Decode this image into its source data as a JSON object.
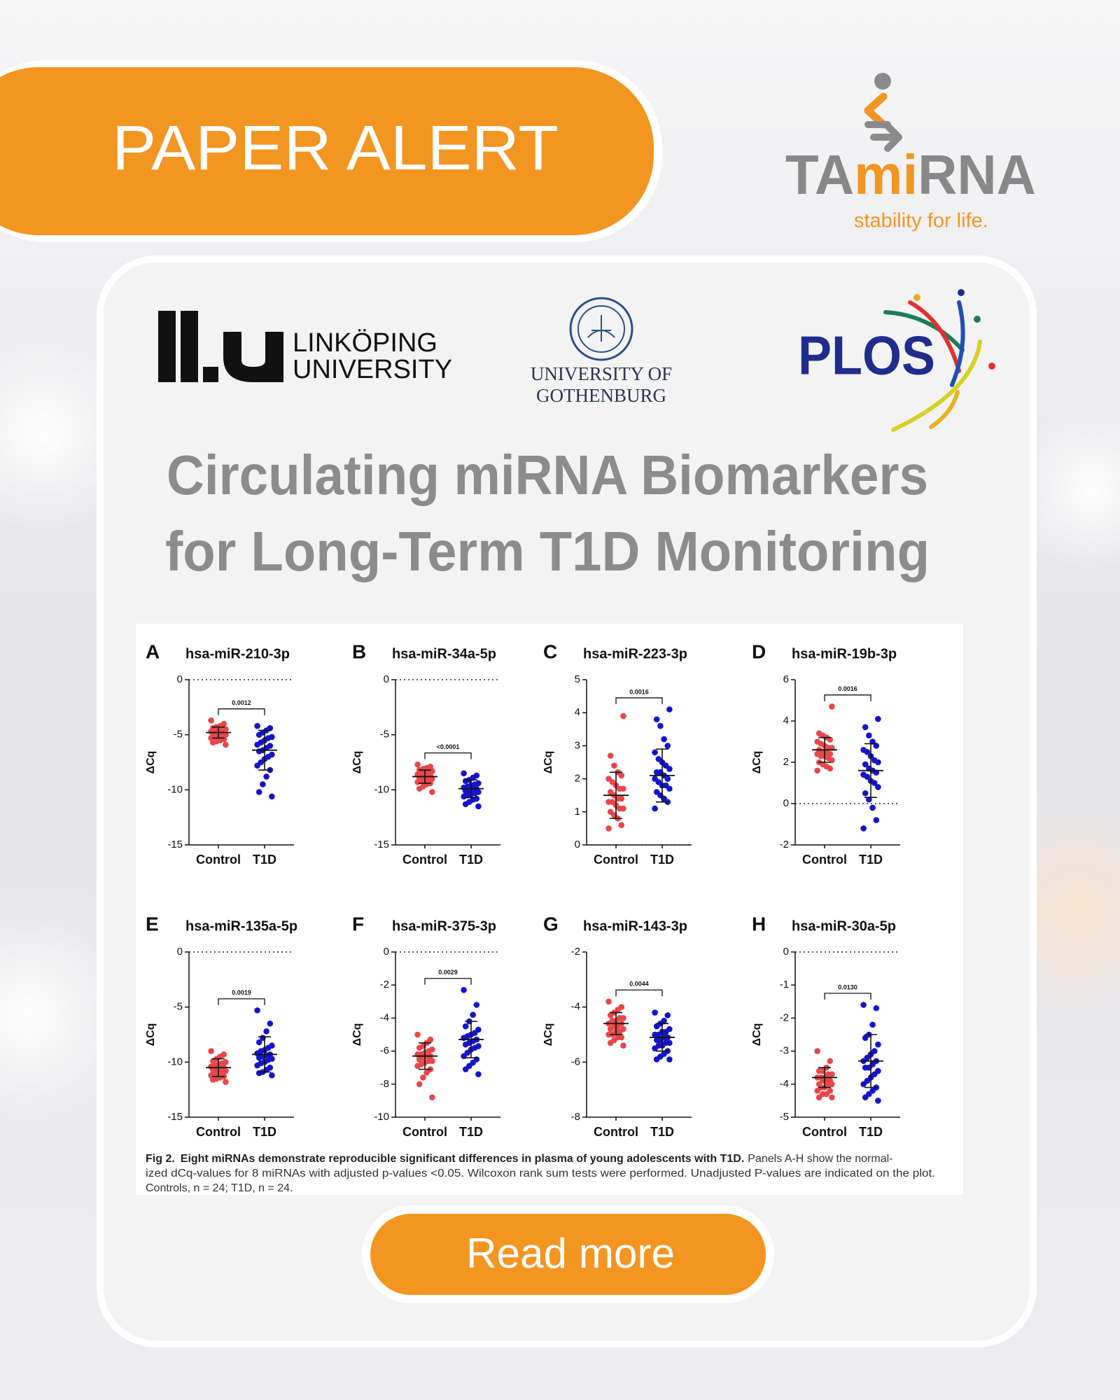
{
  "header": {
    "badge": "PAPER ALERT",
    "brand": {
      "part_1": "TA",
      "part_2": "mi",
      "part_3": "RNA",
      "tagline": "stability for life."
    }
  },
  "logos": {
    "liu": [
      "LINKÖPING",
      "UNIVERSITY"
    ],
    "gothenburg": [
      "UNIVERSITY OF",
      "GOTHENBURG"
    ],
    "plos": "PLOS"
  },
  "title": [
    "Circulating miRNA Biomarkers",
    "for Long-Term T1D Monitoring"
  ],
  "chart_data": [
    {
      "type": "scatter",
      "panel": "A",
      "title": "hsa-miR-210-3p",
      "y_label": "ΔCq",
      "categories": [
        "Control",
        "T1D"
      ],
      "series": [
        {
          "color": "#e8474a",
          "values": [
            -3.7,
            -4.0,
            -4.2,
            -4.3,
            -4.4,
            -4.5,
            -4.5,
            -4.6,
            -4.7,
            -4.7,
            -4.8,
            -4.8,
            -4.9,
            -5.0,
            -5.0,
            -5.1,
            -5.2,
            -5.2,
            -5.3,
            -5.4,
            -5.5,
            -5.6,
            -5.7,
            -5.9
          ],
          "mean": -4.8,
          "sd": 0.5
        },
        {
          "color": "#1414cc",
          "values": [
            -4.2,
            -4.4,
            -4.6,
            -4.8,
            -5.0,
            -5.2,
            -5.3,
            -5.5,
            -5.7,
            -5.9,
            -6.0,
            -6.2,
            -6.4,
            -6.5,
            -6.8,
            -7.0,
            -7.2,
            -7.5,
            -7.8,
            -8.2,
            -8.8,
            -9.5,
            -10.2,
            -10.6
          ],
          "mean": -6.4,
          "sd": 1.8
        }
      ],
      "ylim": [
        -15,
        0
      ],
      "yticks": [
        -15,
        -10,
        -5,
        0
      ],
      "reference_line": 0,
      "annotation": "0.0012"
    },
    {
      "type": "scatter",
      "panel": "B",
      "title": "hsa-miR-34a-5p",
      "y_label": "ΔCq",
      "categories": [
        "Control",
        "T1D"
      ],
      "series": [
        {
          "color": "#e8474a",
          "values": [
            -7.7,
            -7.9,
            -8.0,
            -8.1,
            -8.2,
            -8.3,
            -8.4,
            -8.5,
            -8.5,
            -8.6,
            -8.7,
            -8.7,
            -8.8,
            -8.9,
            -9.0,
            -9.0,
            -9.1,
            -9.2,
            -9.3,
            -9.4,
            -9.5,
            -9.7,
            -9.9,
            -10.2
          ],
          "mean": -8.8,
          "sd": 0.6
        },
        {
          "color": "#1414cc",
          "values": [
            -8.5,
            -8.7,
            -8.9,
            -9.1,
            -9.2,
            -9.4,
            -9.5,
            -9.6,
            -9.7,
            -9.8,
            -9.9,
            -9.9,
            -10.0,
            -10.1,
            -10.2,
            -10.3,
            -10.4,
            -10.5,
            -10.6,
            -10.8,
            -10.9,
            -11.1,
            -11.3,
            -11.5
          ],
          "mean": -9.9,
          "sd": 0.8
        }
      ],
      "ylim": [
        -15,
        0
      ],
      "yticks": [
        -15,
        -10,
        -5,
        0
      ],
      "reference_line": 0,
      "annotation": "<0.0001"
    },
    {
      "type": "scatter",
      "panel": "C",
      "title": "hsa-miR-223-3p",
      "y_label": "ΔCq",
      "categories": [
        "Control",
        "T1D"
      ],
      "series": [
        {
          "color": "#e8474a",
          "values": [
            0.5,
            0.6,
            0.8,
            0.9,
            1.0,
            1.1,
            1.1,
            1.2,
            1.3,
            1.3,
            1.4,
            1.4,
            1.5,
            1.6,
            1.7,
            1.7,
            1.8,
            1.9,
            2.0,
            2.1,
            2.2,
            2.4,
            2.7,
            3.9
          ],
          "mean": 1.5,
          "sd": 0.7
        },
        {
          "color": "#1414cc",
          "values": [
            1.1,
            1.3,
            1.4,
            1.5,
            1.6,
            1.7,
            1.8,
            1.8,
            1.9,
            2.0,
            2.0,
            2.1,
            2.2,
            2.2,
            2.3,
            2.4,
            2.5,
            2.6,
            2.8,
            3.0,
            3.2,
            3.6,
            3.8,
            4.1
          ],
          "mean": 2.1,
          "sd": 0.8
        }
      ],
      "ylim": [
        0,
        5
      ],
      "yticks": [
        0,
        1,
        2,
        3,
        4,
        5
      ],
      "reference_line": 0,
      "annotation": "0.0016"
    },
    {
      "type": "scatter",
      "panel": "D",
      "title": "hsa-miR-19b-3p",
      "y_label": "ΔCq",
      "categories": [
        "Control",
        "T1D"
      ],
      "series": [
        {
          "color": "#e8474a",
          "values": [
            1.6,
            1.7,
            1.8,
            1.9,
            2.0,
            2.1,
            2.2,
            2.3,
            2.3,
            2.4,
            2.4,
            2.5,
            2.5,
            2.6,
            2.7,
            2.7,
            2.8,
            2.9,
            3.0,
            3.1,
            3.2,
            3.3,
            3.4,
            4.7
          ],
          "mean": 2.6,
          "sd": 0.6
        },
        {
          "color": "#1414cc",
          "values": [
            -1.2,
            -0.8,
            -0.2,
            0.2,
            0.5,
            0.8,
            1.0,
            1.1,
            1.3,
            1.4,
            1.5,
            1.6,
            1.7,
            1.9,
            2.0,
            2.1,
            2.3,
            2.5,
            2.6,
            2.8,
            3.0,
            3.3,
            3.7,
            4.1
          ],
          "mean": 1.6,
          "sd": 1.3
        }
      ],
      "ylim": [
        -2,
        6
      ],
      "yticks": [
        -2,
        0,
        2,
        4,
        6
      ],
      "reference_line": 0,
      "annotation": "0.0016"
    },
    {
      "type": "scatter",
      "panel": "E",
      "title": "hsa-miR-135a-5p",
      "y_label": "ΔCq",
      "categories": [
        "Control",
        "T1D"
      ],
      "series": [
        {
          "color": "#e8474a",
          "values": [
            -9.0,
            -9.3,
            -9.5,
            -9.7,
            -9.9,
            -10.0,
            -10.1,
            -10.2,
            -10.3,
            -10.4,
            -10.5,
            -10.5,
            -10.6,
            -10.7,
            -10.8,
            -10.9,
            -11.0,
            -11.1,
            -11.2,
            -11.3,
            -11.4,
            -11.5,
            -11.6,
            -11.8
          ],
          "mean": -10.5,
          "sd": 0.8
        },
        {
          "color": "#1414cc",
          "values": [
            -5.3,
            -6.5,
            -7.2,
            -7.8,
            -8.2,
            -8.5,
            -8.7,
            -8.9,
            -9.0,
            -9.2,
            -9.3,
            -9.4,
            -9.5,
            -9.6,
            -9.7,
            -9.8,
            -10.0,
            -10.1,
            -10.3,
            -10.5,
            -10.7,
            -10.9,
            -11.0,
            -11.2
          ],
          "mean": -9.3,
          "sd": 1.6
        }
      ],
      "ylim": [
        -15,
        0
      ],
      "yticks": [
        -15,
        -10,
        -5,
        0
      ],
      "reference_line": 0,
      "annotation": "0.0019"
    },
    {
      "type": "scatter",
      "panel": "F",
      "title": "hsa-miR-375-3p",
      "y_label": "ΔCq",
      "categories": [
        "Control",
        "T1D"
      ],
      "series": [
        {
          "color": "#e8474a",
          "values": [
            -5.0,
            -5.3,
            -5.5,
            -5.7,
            -5.8,
            -5.9,
            -6.0,
            -6.1,
            -6.2,
            -6.2,
            -6.3,
            -6.3,
            -6.4,
            -6.5,
            -6.6,
            -6.6,
            -6.7,
            -6.8,
            -6.9,
            -7.1,
            -7.3,
            -7.6,
            -8.0,
            -8.8
          ],
          "mean": -6.3,
          "sd": 0.8
        },
        {
          "color": "#1414cc",
          "values": [
            -2.3,
            -3.2,
            -3.8,
            -4.2,
            -4.5,
            -4.7,
            -4.9,
            -5.0,
            -5.1,
            -5.2,
            -5.3,
            -5.4,
            -5.5,
            -5.6,
            -5.7,
            -5.8,
            -5.9,
            -6.1,
            -6.3,
            -6.5,
            -6.7,
            -6.9,
            -7.1,
            -7.4
          ],
          "mean": -5.3,
          "sd": 1.1
        }
      ],
      "ylim": [
        -10,
        0
      ],
      "yticks": [
        -10,
        -8,
        -6,
        -4,
        -2,
        0
      ],
      "reference_line": 0,
      "annotation": "0.0029"
    },
    {
      "type": "scatter",
      "panel": "G",
      "title": "hsa-miR-143-3p",
      "y_label": "ΔCq",
      "categories": [
        "Control",
        "T1D"
      ],
      "series": [
        {
          "color": "#e8474a",
          "values": [
            -3.8,
            -4.0,
            -4.1,
            -4.2,
            -4.3,
            -4.4,
            -4.4,
            -4.5,
            -4.5,
            -4.6,
            -4.6,
            -4.7,
            -4.7,
            -4.8,
            -4.8,
            -4.9,
            -4.9,
            -5.0,
            -5.0,
            -5.1,
            -5.1,
            -5.2,
            -5.3,
            -5.4
          ],
          "mean": -4.6,
          "sd": 0.4
        },
        {
          "color": "#1414cc",
          "values": [
            -4.2,
            -4.3,
            -4.5,
            -4.6,
            -4.7,
            -4.8,
            -4.9,
            -4.9,
            -5.0,
            -5.0,
            -5.1,
            -5.1,
            -5.2,
            -5.2,
            -5.3,
            -5.3,
            -5.4,
            -5.4,
            -5.5,
            -5.6,
            -5.7,
            -5.8,
            -5.9,
            -5.9
          ],
          "mean": -5.1,
          "sd": 0.5
        }
      ],
      "ylim": [
        -8,
        -2
      ],
      "yticks": [
        -8,
        -6,
        -4,
        -2
      ],
      "annotation": "0.0044"
    },
    {
      "type": "scatter",
      "panel": "H",
      "title": "hsa-miR-30a-5p",
      "y_label": "ΔCq",
      "categories": [
        "Control",
        "T1D"
      ],
      "series": [
        {
          "color": "#e8474a",
          "values": [
            -3.0,
            -3.3,
            -3.5,
            -3.6,
            -3.6,
            -3.7,
            -3.7,
            -3.8,
            -3.8,
            -3.8,
            -3.9,
            -3.9,
            -3.9,
            -4.0,
            -4.0,
            -4.0,
            -4.1,
            -4.1,
            -4.2,
            -4.2,
            -4.3,
            -4.3,
            -4.4,
            -4.4
          ],
          "mean": -3.8,
          "sd": 0.3
        },
        {
          "color": "#1414cc",
          "values": [
            -1.6,
            -1.7,
            -2.2,
            -2.5,
            -2.6,
            -2.8,
            -3.0,
            -3.1,
            -3.2,
            -3.3,
            -3.3,
            -3.4,
            -3.5,
            -3.5,
            -3.6,
            -3.7,
            -3.8,
            -3.9,
            -4.0,
            -4.1,
            -4.2,
            -4.3,
            -4.4,
            -4.5
          ],
          "mean": -3.3,
          "sd": 0.8
        }
      ],
      "ylim": [
        -5,
        0
      ],
      "yticks": [
        -5,
        -4,
        -3,
        -2,
        -1,
        0
      ],
      "reference_line": 0,
      "annotation": "0.0130"
    }
  ],
  "caption": {
    "label": "Fig 2.",
    "heading": "Eight miRNAs demonstrate reproducible significant differences in plasma of young adolescents with T1D.",
    "lines": [
      "Panels A-H show the normal-",
      "ized dCq-values for 8 miRNAs with adjusted p-values <0.05. Wilcoxon rank sum tests were performed. Unadjusted P-values are indicated on the plot.",
      "Controls, n = 24; T1D, n = 24."
    ]
  },
  "button": "Read more"
}
